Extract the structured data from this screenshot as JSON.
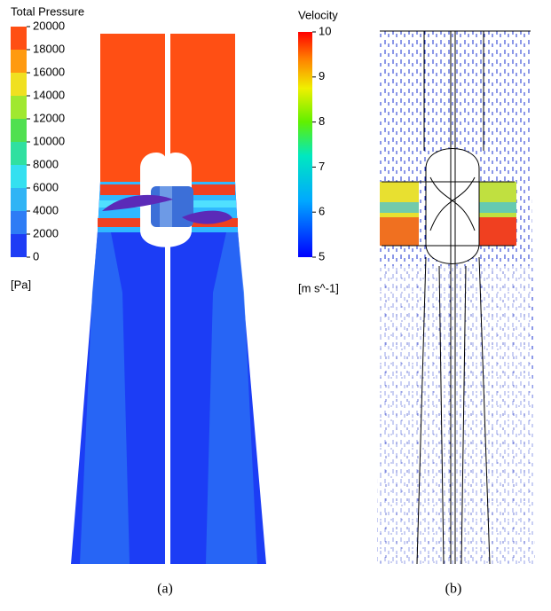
{
  "panels": [
    {
      "caption": "(a)",
      "colorbar": {
        "title": "Total Pressure",
        "lim": [
          0,
          20000
        ],
        "ticks": [
          0,
          2000,
          4000,
          6000,
          8000,
          10000,
          12000,
          14000,
          16000,
          18000,
          20000
        ],
        "unit": "[Pa]"
      }
    },
    {
      "caption": "(b)",
      "colorbar": {
        "title": "Velocity",
        "lim": [
          5,
          10
        ],
        "ticks": [
          5,
          6,
          7,
          8,
          9,
          10
        ],
        "unit": "[m s^-1]"
      }
    }
  ]
}
